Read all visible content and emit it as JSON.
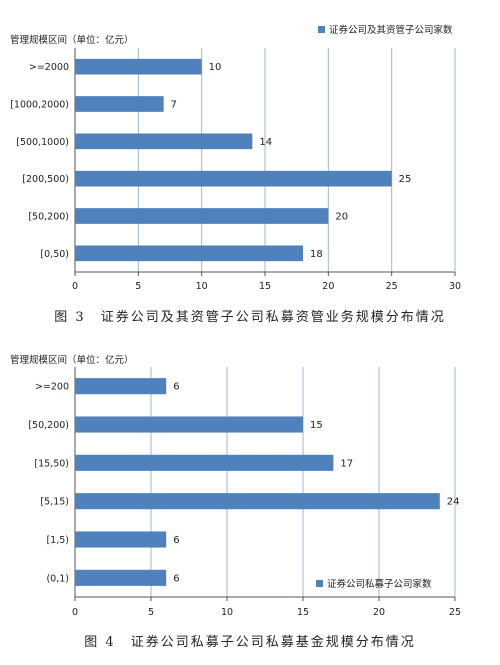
{
  "colors": {
    "bar": "#4f81bd",
    "grid": "#9cb7d0",
    "axis": "#555555"
  },
  "chart_data": [
    {
      "type": "bar",
      "orientation": "horizontal",
      "title": "",
      "ylabel": "管理规模区间（单位：亿元）",
      "categories": [
        ">=2000",
        "[1000,2000)",
        "[500,1000)",
        "[200,500)",
        "[50,200)",
        "[0,50)"
      ],
      "series": [
        {
          "name": "证券公司及其资管子公司家数",
          "values": [
            10,
            7,
            14,
            25,
            20,
            18
          ]
        }
      ],
      "xlim": [
        0,
        30
      ],
      "xticks": [
        0,
        5,
        10,
        15,
        20,
        25,
        30
      ],
      "grid": "vertical",
      "legend_position": "top-right",
      "caption": "图 3　证券公司及其资管子公司私募资管业务规模分布情况"
    },
    {
      "type": "bar",
      "orientation": "horizontal",
      "title": "",
      "ylabel": "管理规模区间（单位：亿元）",
      "categories": [
        ">=200",
        "[50,200)",
        "[15,50)",
        "[5,15)",
        "[1,5)",
        "(0,1)"
      ],
      "series": [
        {
          "name": "证券公司私募子公司家数",
          "values": [
            6,
            15,
            17,
            24,
            6,
            6
          ]
        }
      ],
      "xlim": [
        0,
        25
      ],
      "xticks": [
        0,
        5,
        10,
        15,
        20,
        25
      ],
      "grid": "vertical",
      "legend_position": "bottom-right",
      "caption": "图 4　证券公司私募子公司私募基金规模分布情况"
    }
  ]
}
